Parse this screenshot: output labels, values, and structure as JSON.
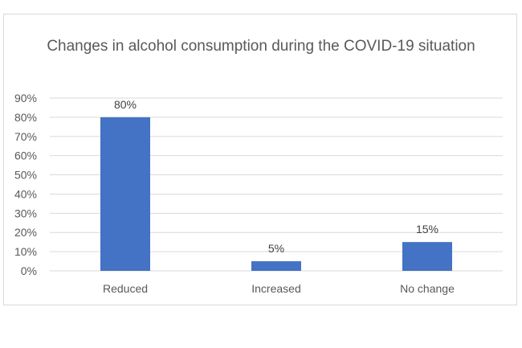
{
  "chart_data": {
    "type": "bar",
    "title": "Changes in alcohol consumption during the COVID-19 situation",
    "categories": [
      "Reduced",
      "Increased",
      "No change"
    ],
    "values": [
      80,
      5,
      15
    ],
    "data_labels": [
      "80%",
      "5%",
      "15%"
    ],
    "ylim": [
      0,
      90
    ],
    "y_ticks": [
      0,
      10,
      20,
      30,
      40,
      50,
      60,
      70,
      80,
      90
    ],
    "y_tick_labels": [
      "0%",
      "10%",
      "20%",
      "30%",
      "40%",
      "50%",
      "60%",
      "70%",
      "80%",
      "90%"
    ],
    "grid": true,
    "legend": "none",
    "bar_color": "#4472c4",
    "grid_color": "#d9d9d9",
    "text_color": "#595959"
  }
}
